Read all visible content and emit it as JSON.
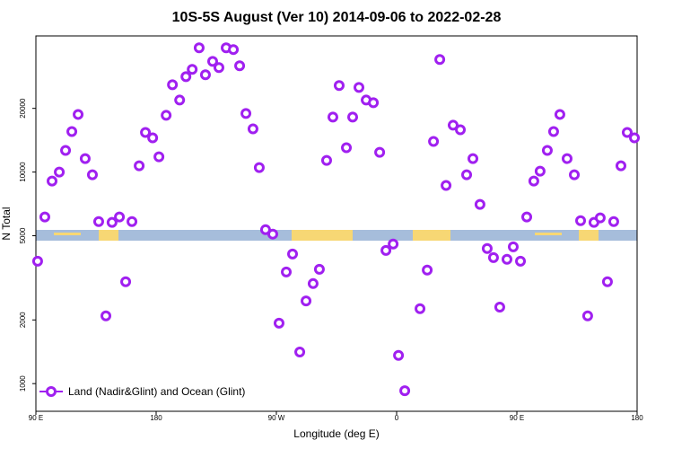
{
  "chart_data": {
    "type": "scatter",
    "title": "10S-5S August (Ver 10)   2014-09-06 to 2022-02-28",
    "x_label": "Longitude (deg E)",
    "y_label": "N Total",
    "ylog": true,
    "legend": "bottom-left",
    "xlim": [
      90,
      540
    ],
    "ylim": [
      740,
      44000
    ],
    "xticks": [
      {
        "value": 90,
        "label": "90 E"
      },
      {
        "value": 180,
        "label": "180"
      },
      {
        "value": 270,
        "label": "90 W"
      },
      {
        "value": 360,
        "label": "0"
      },
      {
        "value": 450,
        "label": "90 E"
      },
      {
        "value": 540,
        "label": "180"
      }
    ],
    "yticks": [
      1000,
      2000,
      5000,
      10000,
      20000
    ],
    "x": [
      91.3,
      96.7,
      102.1,
      107.5,
      112.2,
      116.9,
      121.6,
      126.9,
      132.3,
      137.0,
      142.4,
      147.0,
      152.5,
      157.2,
      161.9,
      167.3,
      172.0,
      177.4,
      182.1,
      187.5,
      192.2,
      197.6,
      202.3,
      207.0,
      212.2,
      216.9,
      222.3,
      227.0,
      232.4,
      237.8,
      242.5,
      247.2,
      252.5,
      257.2,
      261.9,
      267.3,
      272.0,
      277.4,
      282.1,
      287.5,
      292.2,
      297.5,
      302.2,
      307.6,
      312.3,
      317.0,
      322.4,
      327.1,
      331.8,
      337.2,
      342.6,
      347.3,
      352.0,
      357.4,
      361.4,
      366.1,
      377.5,
      382.9,
      387.6,
      392.3,
      397.0,
      402.3,
      407.7,
      412.4,
      417.1,
      422.4,
      427.8,
      432.5,
      437.2,
      442.6,
      447.3,
      452.7,
      457.4,
      462.7,
      467.4,
      472.8,
      477.5,
      482.2,
      487.6,
      493.0,
      497.7,
      503.0,
      507.7,
      512.4,
      517.8,
      522.5,
      527.9,
      532.6,
      538.0
    ],
    "series": [
      {
        "name": "Land (Nadir&Glint) and Ocean (Glint)",
        "color": "#a020f0",
        "values": [
          3790,
          6130,
          9070,
          10000,
          12650,
          15540,
          18720,
          11580,
          9710,
          5830,
          2090,
          5780,
          6130,
          3030,
          5830,
          10710,
          15390,
          14510,
          11810,
          18540,
          25860,
          21890,
          28250,
          30560,
          38660,
          28840,
          33360,
          31170,
          38660,
          37930,
          31780,
          18910,
          16000,
          10500,
          5340,
          5090,
          1930,
          3370,
          4100,
          1410,
          2460,
          2970,
          3470,
          11350,
          18190,
          25640,
          13030,
          18190,
          25120,
          21890,
          21270,
          12400,
          4260,
          4570,
          1360,
          925,
          2260,
          3440,
          13950,
          34040,
          8640,
          16650,
          15850,
          9710,
          11580,
          7030,
          4350,
          3940,
          2300,
          3870,
          4430,
          3790,
          6130,
          9070,
          10100,
          12650,
          15540,
          18720,
          11580,
          9710,
          5890,
          2090,
          5780,
          6070,
          3030,
          5830,
          10710,
          15390,
          14510
        ]
      }
    ]
  }
}
